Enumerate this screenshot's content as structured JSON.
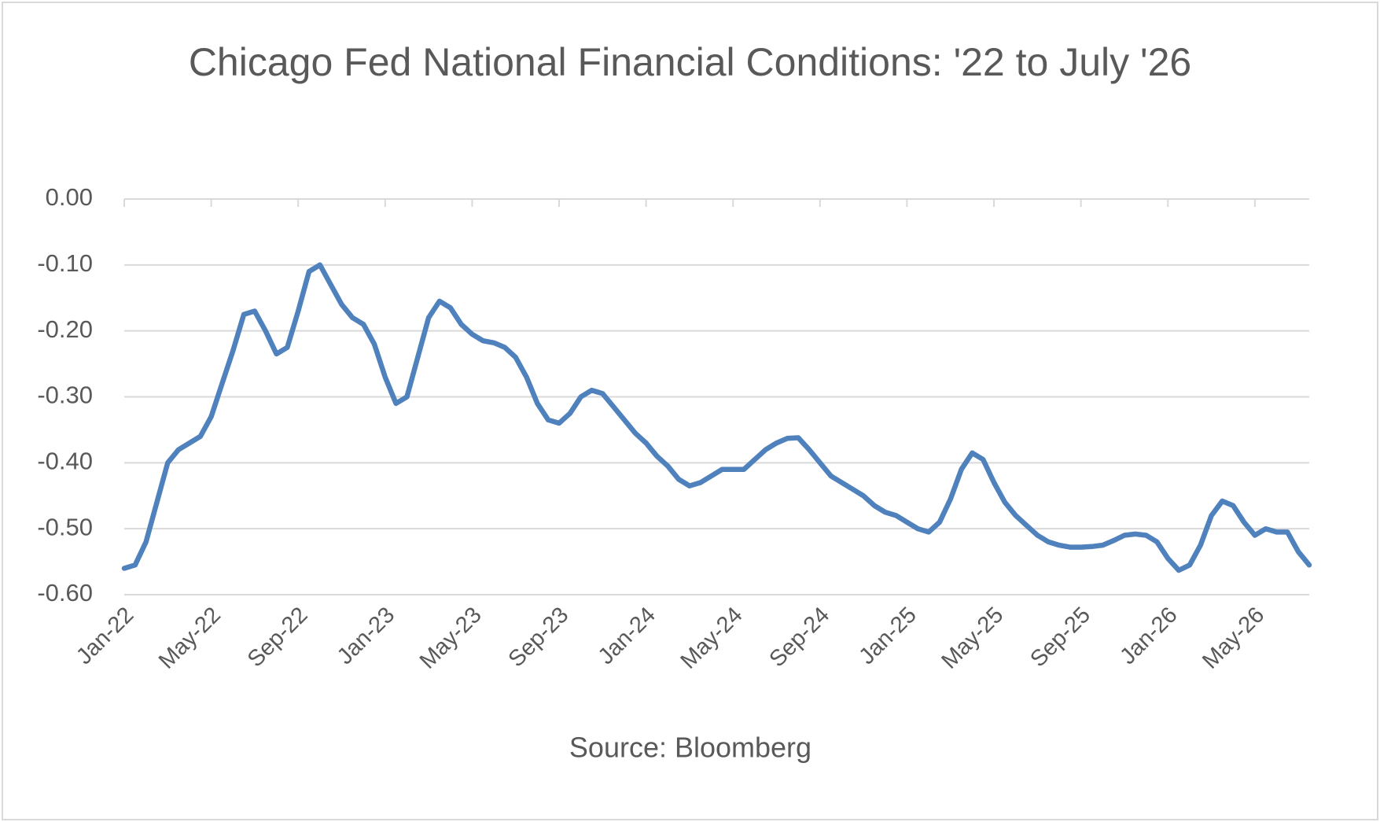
{
  "chart_data": {
    "type": "line",
    "title": "Chicago Fed National Financial Conditions: '22 to July '26",
    "caption": "Source: Bloomberg",
    "color": "#4f81bd",
    "grid": true,
    "categories": [
      "Jan-22",
      null,
      null,
      null,
      null,
      null,
      null,
      null,
      "May-22",
      null,
      null,
      null,
      null,
      null,
      null,
      null,
      "Sep-22",
      null,
      null,
      null,
      null,
      null,
      null,
      null,
      "Jan-23",
      null,
      null,
      null,
      null,
      null,
      null,
      null,
      "May-23",
      null,
      null,
      null,
      null,
      null,
      null,
      null,
      "Sep-23",
      null,
      null,
      null,
      null,
      null,
      null,
      null,
      "Jan-24",
      null,
      null,
      null,
      null,
      null,
      null,
      null,
      "May-24",
      null,
      null,
      null,
      null,
      null,
      null,
      null,
      "Sep-24",
      null,
      null,
      null,
      null,
      null,
      null,
      null,
      "Jan-25",
      null,
      null,
      null,
      null,
      null,
      null,
      null,
      "May-25",
      null,
      null,
      null,
      null,
      null,
      null,
      null,
      "Sep-25",
      null,
      null,
      null,
      null,
      null,
      null,
      null,
      "Jan-26",
      null,
      null,
      null,
      null,
      null,
      null,
      null,
      "May-26",
      null,
      null,
      null,
      null,
      null
    ],
    "values": [
      -0.56,
      -0.555,
      -0.52,
      -0.46,
      -0.4,
      -0.38,
      -0.37,
      -0.36,
      -0.33,
      -0.28,
      -0.23,
      -0.175,
      -0.17,
      -0.2,
      -0.235,
      -0.225,
      -0.17,
      -0.11,
      -0.1,
      -0.13,
      -0.16,
      -0.18,
      -0.19,
      -0.22,
      -0.27,
      -0.31,
      -0.3,
      -0.24,
      -0.18,
      -0.155,
      -0.165,
      -0.19,
      -0.205,
      -0.215,
      -0.218,
      -0.225,
      -0.24,
      -0.27,
      -0.31,
      -0.335,
      -0.34,
      -0.325,
      -0.3,
      -0.29,
      -0.295,
      -0.315,
      -0.335,
      -0.355,
      -0.37,
      -0.39,
      -0.405,
      -0.425,
      -0.435,
      -0.43,
      -0.42,
      -0.41,
      -0.41,
      -0.41,
      -0.395,
      -0.38,
      -0.37,
      -0.363,
      -0.362,
      -0.38,
      -0.4,
      -0.42,
      -0.43,
      -0.44,
      -0.45,
      -0.465,
      -0.475,
      -0.48,
      -0.49,
      -0.5,
      -0.505,
      -0.49,
      -0.455,
      -0.41,
      -0.385,
      -0.395,
      -0.43,
      -0.46,
      -0.48,
      -0.495,
      -0.51,
      -0.52,
      -0.525,
      -0.528,
      -0.528,
      -0.527,
      -0.525,
      -0.518,
      -0.51,
      -0.508,
      -0.51,
      -0.52,
      -0.545,
      -0.563,
      -0.555,
      -0.525,
      -0.48,
      -0.458,
      -0.465,
      -0.49,
      -0.51,
      -0.5,
      -0.505,
      -0.505,
      -0.535,
      -0.555
    ],
    "ylim": [
      -0.6,
      0
    ],
    "yticks": [
      {
        "value": -0.6,
        "label": "-0.60"
      },
      {
        "value": -0.5,
        "label": "-0.50"
      },
      {
        "value": -0.4,
        "label": "-0.40"
      },
      {
        "value": -0.3,
        "label": "-0.30"
      },
      {
        "value": -0.2,
        "label": "-0.20"
      },
      {
        "value": -0.1,
        "label": "-0.10"
      },
      {
        "value": 0,
        "label": "0.00"
      }
    ]
  }
}
